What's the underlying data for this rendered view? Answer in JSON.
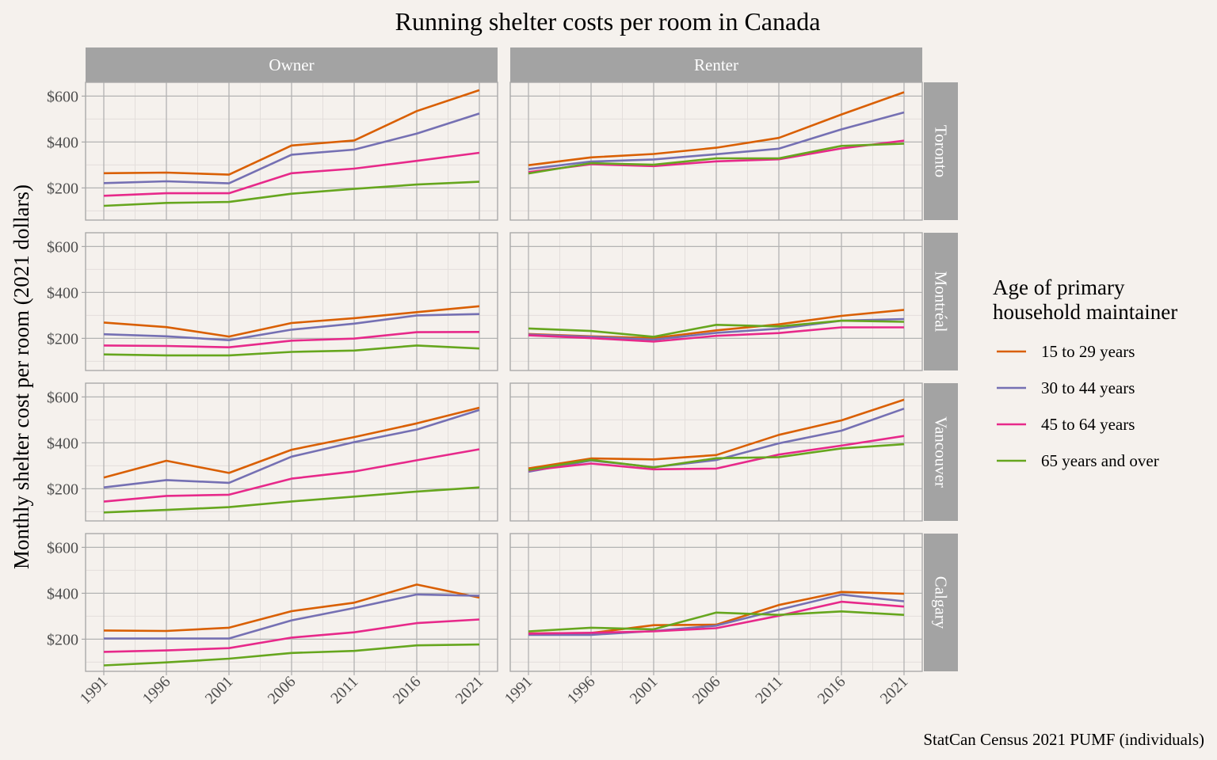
{
  "chart_data": {
    "type": "line",
    "title": "Running shelter costs per room in Canada",
    "xlabel": "",
    "ylabel": "Monthly shelter cost per room (2021 dollars)",
    "caption": "StatCan Census 2021 PUMF (individuals)",
    "x": [
      1991,
      1996,
      2001,
      2006,
      2011,
      2016,
      2021
    ],
    "x_tick_labels": [
      "1991",
      "1996",
      "2001",
      "2006",
      "2011",
      "2016",
      "2021"
    ],
    "ylim": [
      60,
      660
    ],
    "y_ticks": [
      200,
      400,
      600
    ],
    "y_tick_labels": [
      "$200",
      "$400",
      "$600"
    ],
    "y_minor_ticks": [
      100,
      300,
      500
    ],
    "grid": true,
    "columns": [
      "Owner",
      "Renter"
    ],
    "rows": [
      "Toronto",
      "Montréal",
      "Vancouver",
      "Calgary"
    ],
    "legend": {
      "title_line1": "Age of primary",
      "title_line2": "household maintainer",
      "placement": "right",
      "entries": [
        {
          "name": "15 to 29 years",
          "color": "#D95F02"
        },
        {
          "name": "30 to 44 years",
          "color": "#7570B3"
        },
        {
          "name": "45 to 64 years",
          "color": "#E7298A"
        },
        {
          "name": "65 years and over",
          "color": "#66A61E"
        }
      ]
    },
    "panels": [
      {
        "row": "Toronto",
        "column": "Owner",
        "series": [
          {
            "name": "15 to 29 years",
            "values": [
              264,
              267,
              258,
              385,
              407,
              535,
              626
            ]
          },
          {
            "name": "30 to 44 years",
            "values": [
              221,
              229,
              220,
              345,
              367,
              437,
              524
            ]
          },
          {
            "name": "45 to 64 years",
            "values": [
              166,
              177,
              177,
              264,
              284,
              318,
              353
            ]
          },
          {
            "name": "65 years and over",
            "values": [
              122,
              135,
              139,
              175,
              196,
              215,
              227
            ]
          }
        ]
      },
      {
        "row": "Toronto",
        "column": "Renter",
        "series": [
          {
            "name": "15 to 29 years",
            "values": [
              299,
              333,
              348,
              375,
              418,
              520,
              617
            ]
          },
          {
            "name": "30 to 44 years",
            "values": [
              282,
              315,
              324,
              347,
              371,
              455,
              529
            ]
          },
          {
            "name": "45 to 64 years",
            "values": [
              269,
              303,
              295,
              316,
              325,
              372,
              406
            ]
          },
          {
            "name": "65 years and over",
            "values": [
              263,
              308,
              301,
              329,
              329,
              383,
              393
            ]
          }
        ]
      },
      {
        "row": "Montréal",
        "column": "Owner",
        "series": [
          {
            "name": "15 to 29 years",
            "values": [
              269,
              249,
              208,
              267,
              288,
              314,
              340
            ]
          },
          {
            "name": "30 to 44 years",
            "values": [
              218,
              209,
              192,
              238,
              264,
              300,
              306
            ]
          },
          {
            "name": "45 to 64 years",
            "values": [
              169,
              167,
              161,
              190,
              199,
              227,
              228
            ]
          },
          {
            "name": "65 years and over",
            "values": [
              130,
              126,
              126,
              141,
              147,
              169,
              156
            ]
          }
        ]
      },
      {
        "row": "Montréal",
        "column": "Renter",
        "series": [
          {
            "name": "15 to 29 years",
            "values": [
              219,
              209,
              201,
              235,
              261,
              298,
              324
            ]
          },
          {
            "name": "30 to 44 years",
            "values": [
              217,
              207,
              194,
              224,
              242,
              277,
              284
            ]
          },
          {
            "name": "45 to 64 years",
            "values": [
              213,
              201,
              186,
              211,
              223,
              248,
              248
            ]
          },
          {
            "name": "65 years and over",
            "values": [
              243,
              232,
              207,
              259,
              252,
              277,
              272
            ]
          }
        ]
      },
      {
        "row": "Vancouver",
        "column": "Owner",
        "series": [
          {
            "name": "15 to 29 years",
            "values": [
              249,
              322,
              269,
              370,
              425,
              485,
              553
            ]
          },
          {
            "name": "30 to 44 years",
            "values": [
              206,
              238,
              226,
              340,
              403,
              458,
              543
            ]
          },
          {
            "name": "45 to 64 years",
            "values": [
              144,
              169,
              174,
              244,
              275,
              324,
              372
            ]
          },
          {
            "name": "65 years and over",
            "values": [
              97,
              108,
              120,
              145,
              166,
              188,
              206
            ]
          }
        ]
      },
      {
        "row": "Vancouver",
        "column": "Renter",
        "series": [
          {
            "name": "15 to 29 years",
            "values": [
              289,
              332,
              328,
              347,
              435,
              498,
              588
            ]
          },
          {
            "name": "30 to 44 years",
            "values": [
              274,
              323,
              294,
              325,
              398,
              453,
              549
            ]
          },
          {
            "name": "45 to 64 years",
            "values": [
              280,
              310,
              285,
              288,
              349,
              388,
              430
            ]
          },
          {
            "name": "65 years and over",
            "values": [
              282,
              326,
              293,
              333,
              338,
              376,
              394
            ]
          }
        ]
      },
      {
        "row": "Calgary",
        "column": "Owner",
        "series": [
          {
            "name": "15 to 29 years",
            "values": [
              238,
              236,
              250,
              322,
              359,
              438,
              381
            ]
          },
          {
            "name": "30 to 44 years",
            "values": [
              203,
              203,
              203,
              282,
              336,
              395,
              389
            ]
          },
          {
            "name": "45 to 64 years",
            "values": [
              145,
              151,
              161,
              207,
              230,
              270,
              286
            ]
          },
          {
            "name": "65 years and over",
            "values": [
              86,
              99,
              115,
              140,
              149,
              173,
              177
            ]
          }
        ]
      },
      {
        "row": "Calgary",
        "column": "Renter",
        "series": [
          {
            "name": "15 to 29 years",
            "values": [
              225,
              227,
              261,
              263,
              349,
              406,
              398
            ]
          },
          {
            "name": "30 to 44 years",
            "values": [
              219,
              219,
              236,
              259,
              328,
              394,
              365
            ]
          },
          {
            "name": "45 to 64 years",
            "values": [
              224,
              228,
              234,
              248,
              302,
              363,
              342
            ]
          },
          {
            "name": "65 years and over",
            "values": [
              234,
              250,
              243,
              316,
              306,
              321,
              306
            ]
          }
        ]
      }
    ]
  }
}
